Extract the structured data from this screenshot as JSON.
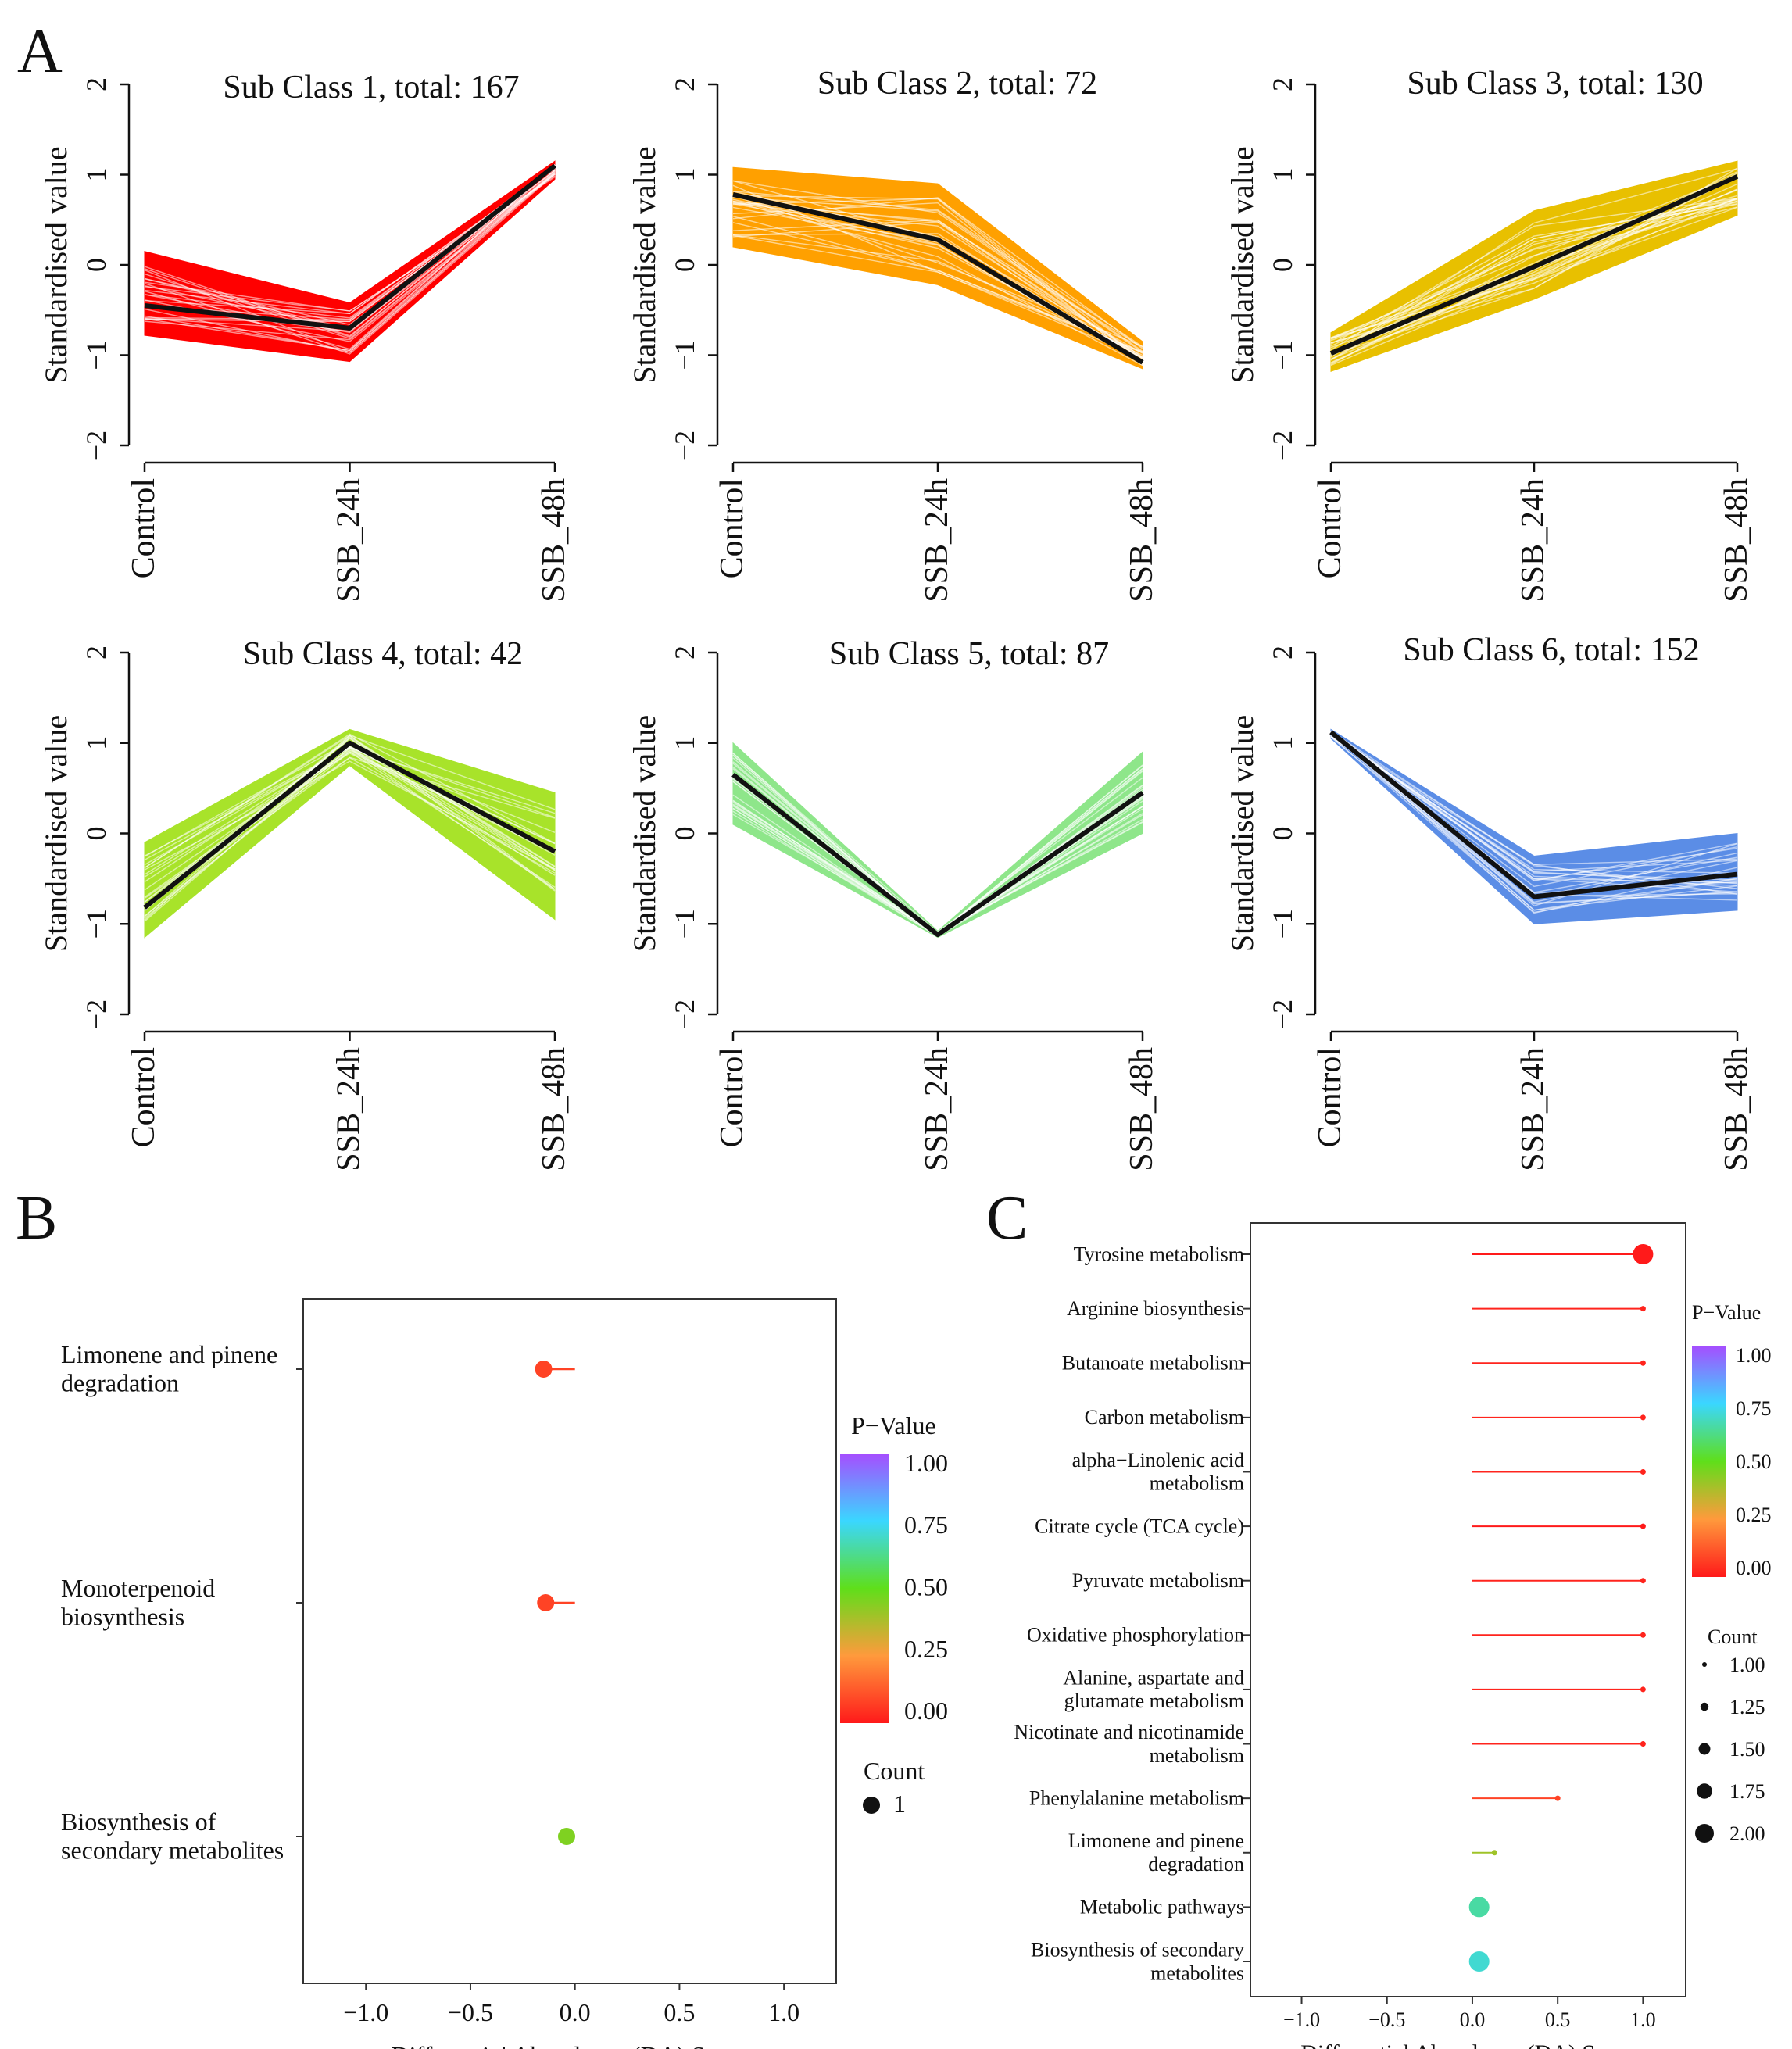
{
  "figure": {
    "panel_labels": {
      "a": "A",
      "b": "B",
      "c": "C"
    }
  },
  "chart_data": [
    {
      "id": "sub1",
      "type": "line",
      "title": "Sub Class 1, total: 167",
      "xlabel": "",
      "ylabel": "Standardised value",
      "categories": [
        "Control",
        "SSB_24h",
        "SSB_48h"
      ],
      "ylim": [
        -2,
        2
      ],
      "yticks": [
        "−2",
        "−1",
        "0",
        "1",
        "2"
      ],
      "color": "#ff0000",
      "n_lines": 167,
      "band": {
        "low": [
          -0.78,
          -1.07,
          0.95
        ],
        "high": [
          0.15,
          -0.42,
          1.15
        ]
      },
      "series": [
        {
          "name": "mean",
          "values": [
            -0.45,
            -0.7,
            1.1
          ]
        }
      ]
    },
    {
      "id": "sub2",
      "type": "line",
      "title": "Sub Class 2, total: 72",
      "xlabel": "",
      "ylabel": "Standardised value",
      "categories": [
        "Control",
        "SSB_24h",
        "SSB_48h"
      ],
      "ylim": [
        -2,
        2
      ],
      "yticks": [
        "−2",
        "−1",
        "0",
        "1",
        "2"
      ],
      "color": "#ffa000",
      "n_lines": 72,
      "band": {
        "low": [
          0.2,
          -0.22,
          -1.15
        ],
        "high": [
          1.08,
          0.9,
          -0.85
        ]
      },
      "series": [
        {
          "name": "mean",
          "values": [
            0.78,
            0.28,
            -1.08
          ]
        }
      ]
    },
    {
      "id": "sub3",
      "type": "line",
      "title": "Sub Class 3, total: 130",
      "xlabel": "",
      "ylabel": "Standardised value",
      "categories": [
        "Control",
        "SSB_24h",
        "SSB_48h"
      ],
      "ylim": [
        -2,
        2
      ],
      "yticks": [
        "−2",
        "−1",
        "0",
        "1",
        "2"
      ],
      "color": "#e8c000",
      "n_lines": 130,
      "band": {
        "low": [
          -1.18,
          -0.38,
          0.55
        ],
        "high": [
          -0.75,
          0.6,
          1.15
        ]
      },
      "series": [
        {
          "name": "mean",
          "values": [
            -0.98,
            -0.02,
            0.98
          ]
        }
      ]
    },
    {
      "id": "sub4",
      "type": "line",
      "title": "Sub Class 4, total: 42",
      "xlabel": "",
      "ylabel": "Standardised value",
      "categories": [
        "Control",
        "SSB_24h",
        "SSB_48h"
      ],
      "ylim": [
        -2,
        2
      ],
      "yticks": [
        "−2",
        "−1",
        "0",
        "1",
        "2"
      ],
      "color": "#a8e32a",
      "n_lines": 42,
      "band": {
        "low": [
          -1.15,
          0.75,
          -0.95
        ],
        "high": [
          -0.1,
          1.15,
          0.45
        ]
      },
      "series": [
        {
          "name": "mean",
          "values": [
            -0.82,
            1.0,
            -0.2
          ]
        }
      ]
    },
    {
      "id": "sub5",
      "type": "line",
      "title": "Sub Class 5, total: 87",
      "xlabel": "",
      "ylabel": "Standardised value",
      "categories": [
        "Control",
        "SSB_24h",
        "SSB_48h"
      ],
      "ylim": [
        -2,
        2
      ],
      "yticks": [
        "−2",
        "−1",
        "0",
        "1",
        "2"
      ],
      "color": "#8ee68a",
      "n_lines": 87,
      "band": {
        "low": [
          0.1,
          -1.15,
          0.0
        ],
        "high": [
          1.0,
          -1.08,
          0.9
        ]
      },
      "series": [
        {
          "name": "mean",
          "values": [
            0.65,
            -1.12,
            0.45
          ]
        }
      ]
    },
    {
      "id": "sub6",
      "type": "line",
      "title": "Sub Class 6, total: 152",
      "xlabel": "",
      "ylabel": "Standardised value",
      "categories": [
        "Control",
        "SSB_24h",
        "SSB_48h"
      ],
      "ylim": [
        -2,
        2
      ],
      "yticks": [
        "−2",
        "−1",
        "0",
        "1",
        "2"
      ],
      "color": "#5b8de6",
      "n_lines": 152,
      "band": {
        "low": [
          1.05,
          -1.0,
          -0.85
        ],
        "high": [
          1.15,
          -0.25,
          0.0
        ]
      },
      "series": [
        {
          "name": "mean",
          "values": [
            1.12,
            -0.7,
            -0.45
          ]
        }
      ]
    },
    {
      "id": "daB",
      "type": "scatter",
      "title": "",
      "xlabel": "Differential Abundance (DA) Score",
      "ylabel": "",
      "xlim": [
        -1.3,
        1.25
      ],
      "xticks": [
        {
          "value": -1.0,
          "label": "−1.0"
        },
        {
          "value": -0.5,
          "label": "−0.5"
        },
        {
          "value": 0.0,
          "label": "0.0"
        },
        {
          "value": 0.5,
          "label": "0.5"
        },
        {
          "value": 1.0,
          "label": "1.0"
        }
      ],
      "categories": [
        [
          "Limonene and pinene",
          "degradation"
        ],
        [
          "Monoterpenoid",
          "biosynthesis"
        ],
        [
          "Biosynthesis of",
          "secondary metabolites"
        ]
      ],
      "points": [
        {
          "da": -0.15,
          "p": 0.08,
          "count": 1
        },
        {
          "da": -0.14,
          "p": 0.08,
          "count": 1
        },
        {
          "da": -0.04,
          "p": 0.45,
          "count": 1
        }
      ],
      "legend": {
        "pvalue_title": "P−Value",
        "pvalue_ticks": [
          "1.00",
          "0.75",
          "0.50",
          "0.25",
          "0.00"
        ],
        "count_title": "Count",
        "count_items": [
          {
            "label": "1",
            "value": 1
          }
        ]
      }
    },
    {
      "id": "daC",
      "type": "scatter",
      "title": "",
      "xlabel": "Differential Abundance (DA) Score",
      "ylabel": "",
      "xlim": [
        -1.3,
        1.25
      ],
      "xticks": [
        {
          "value": -1.0,
          "label": "−1.0"
        },
        {
          "value": -0.5,
          "label": "−0.5"
        },
        {
          "value": 0.0,
          "label": "0.0"
        },
        {
          "value": 0.5,
          "label": "0.5"
        },
        {
          "value": 1.0,
          "label": "1.0"
        }
      ],
      "categories": [
        [
          "Tyrosine metabolism"
        ],
        [
          "Arginine biosynthesis"
        ],
        [
          "Butanoate metabolism"
        ],
        [
          "Carbon metabolism"
        ],
        [
          "alpha−Linolenic acid",
          "metabolism"
        ],
        [
          "Citrate cycle (TCA cycle)"
        ],
        [
          "Pyruvate metabolism"
        ],
        [
          "Oxidative phosphorylation"
        ],
        [
          "Alanine, aspartate and",
          "glutamate metabolism"
        ],
        [
          "Nicotinate and nicotinamide",
          "metabolism"
        ],
        [
          "Phenylalanine metabolism"
        ],
        [
          "Limonene and pinene",
          "degradation"
        ],
        [
          "Metabolic pathways"
        ],
        [
          "Biosynthesis of secondary",
          "metabolites"
        ]
      ],
      "points": [
        {
          "da": 1.0,
          "p": 0.0,
          "count": 2
        },
        {
          "da": 1.0,
          "p": 0.02,
          "count": 1
        },
        {
          "da": 1.0,
          "p": 0.02,
          "count": 1
        },
        {
          "da": 1.0,
          "p": 0.02,
          "count": 1
        },
        {
          "da": 1.0,
          "p": 0.02,
          "count": 1
        },
        {
          "da": 1.0,
          "p": 0.0,
          "count": 1
        },
        {
          "da": 1.0,
          "p": 0.02,
          "count": 1
        },
        {
          "da": 1.0,
          "p": 0.02,
          "count": 1
        },
        {
          "da": 1.0,
          "p": 0.02,
          "count": 1
        },
        {
          "da": 1.0,
          "p": 0.02,
          "count": 1
        },
        {
          "da": 0.5,
          "p": 0.08,
          "count": 1
        },
        {
          "da": 0.13,
          "p": 0.4,
          "count": 1
        },
        {
          "da": 0.04,
          "p": 0.65,
          "count": 2
        },
        {
          "da": 0.04,
          "p": 0.7,
          "count": 2
        }
      ],
      "legend": {
        "pvalue_title": "P−Value",
        "pvalue_ticks": [
          "1.00",
          "0.75",
          "0.50",
          "0.25",
          "0.00"
        ],
        "count_title": "Count",
        "count_items": [
          {
            "label": "1.00",
            "value": 1.0
          },
          {
            "label": "1.25",
            "value": 1.25
          },
          {
            "label": "1.50",
            "value": 1.5
          },
          {
            "label": "1.75",
            "value": 1.75
          },
          {
            "label": "2.00",
            "value": 2.0
          }
        ]
      }
    }
  ]
}
